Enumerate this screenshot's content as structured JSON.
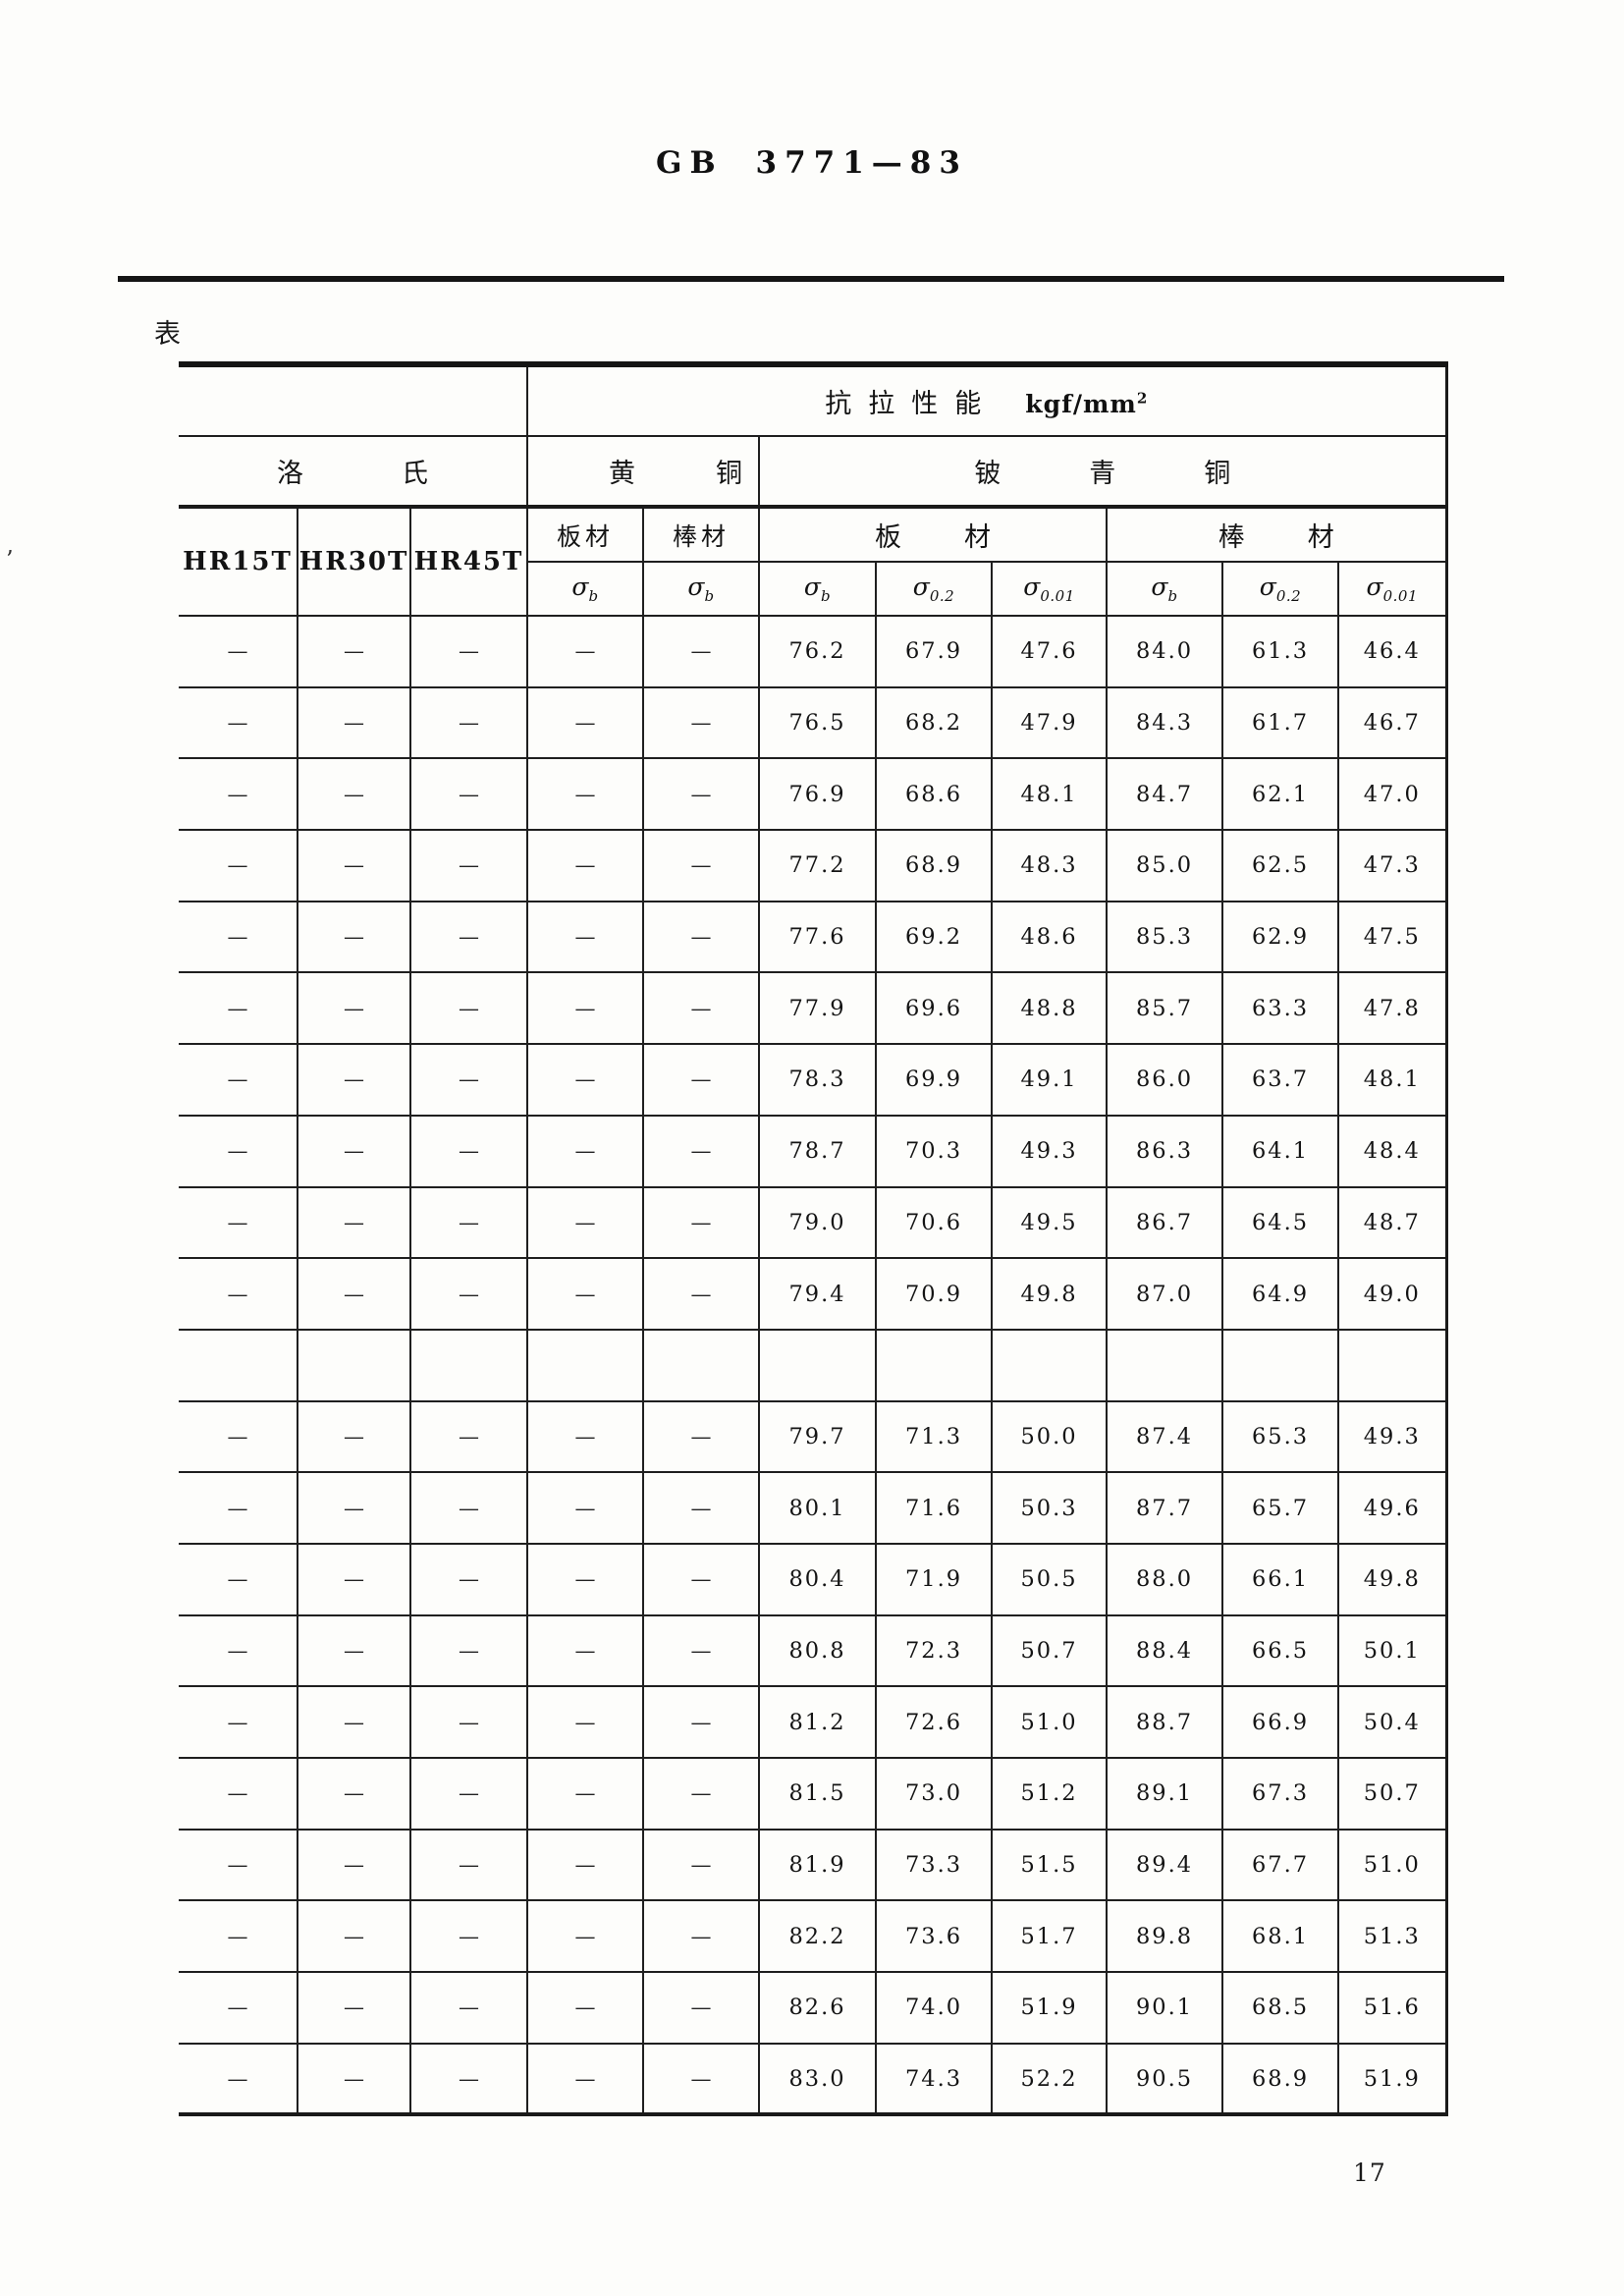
{
  "page": {
    "doc_code": "GB 3771—83",
    "table_label": "表",
    "page_number": "17"
  },
  "table": {
    "title_row": {
      "tensile_title_cjk": "抗拉性能",
      "tensile_unit_base": "kgf/mm",
      "tensile_unit_sup": "2"
    },
    "group_row": {
      "rockwell": "洛氏",
      "brass": "黄铜",
      "beryllium_bronze": "铍青铜"
    },
    "sub_row": {
      "hr15t": "HR15T",
      "hr30t": "HR30T",
      "hr45t": "HR45T",
      "brass_sheet": "板材",
      "brass_bar": "棒材",
      "bronze_sheet": "板材",
      "bronze_bar": "棒材"
    },
    "sigma_row": [
      {
        "sym": "σ",
        "sub": "b"
      },
      {
        "sym": "σ",
        "sub": "b"
      },
      {
        "sym": "σ",
        "sub": "b"
      },
      {
        "sym": "σ",
        "sub": "0.2"
      },
      {
        "sym": "σ",
        "sub": "0.01"
      },
      {
        "sym": "σ",
        "sub": "b"
      },
      {
        "sym": "σ",
        "sub": "0.2"
      },
      {
        "sym": "σ",
        "sub": "0.01"
      }
    ],
    "rows": [
      [
        "—",
        "—",
        "—",
        "—",
        "—",
        "76.2",
        "67.9",
        "47.6",
        "84.0",
        "61.3",
        "46.4"
      ],
      [
        "—",
        "—",
        "—",
        "—",
        "—",
        "76.5",
        "68.2",
        "47.9",
        "84.3",
        "61.7",
        "46.7"
      ],
      [
        "—",
        "—",
        "—",
        "—",
        "—",
        "76.9",
        "68.6",
        "48.1",
        "84.7",
        "62.1",
        "47.0"
      ],
      [
        "—",
        "—",
        "—",
        "—",
        "—",
        "77.2",
        "68.9",
        "48.3",
        "85.0",
        "62.5",
        "47.3"
      ],
      [
        "—",
        "—",
        "—",
        "—",
        "—",
        "77.6",
        "69.2",
        "48.6",
        "85.3",
        "62.9",
        "47.5"
      ],
      [
        "—",
        "—",
        "—",
        "—",
        "—",
        "77.9",
        "69.6",
        "48.8",
        "85.7",
        "63.3",
        "47.8"
      ],
      [
        "—",
        "—",
        "—",
        "—",
        "—",
        "78.3",
        "69.9",
        "49.1",
        "86.0",
        "63.7",
        "48.1"
      ],
      [
        "—",
        "—",
        "—",
        "—",
        "—",
        "78.7",
        "70.3",
        "49.3",
        "86.3",
        "64.1",
        "48.4"
      ],
      [
        "—",
        "—",
        "—",
        "—",
        "—",
        "79.0",
        "70.6",
        "49.5",
        "86.7",
        "64.5",
        "48.7"
      ],
      [
        "—",
        "—",
        "—",
        "—",
        "—",
        "79.4",
        "70.9",
        "49.8",
        "87.0",
        "64.9",
        "49.0"
      ],
      [
        "",
        "",
        "",
        "",
        "",
        "",
        "",
        "",
        "",
        "",
        ""
      ],
      [
        "—",
        "—",
        "—",
        "—",
        "—",
        "79.7",
        "71.3",
        "50.0",
        "87.4",
        "65.3",
        "49.3"
      ],
      [
        "—",
        "—",
        "—",
        "—",
        "—",
        "80.1",
        "71.6",
        "50.3",
        "87.7",
        "65.7",
        "49.6"
      ],
      [
        "—",
        "—",
        "—",
        "—",
        "—",
        "80.4",
        "71.9",
        "50.5",
        "88.0",
        "66.1",
        "49.8"
      ],
      [
        "—",
        "—",
        "—",
        "—",
        "—",
        "80.8",
        "72.3",
        "50.7",
        "88.4",
        "66.5",
        "50.1"
      ],
      [
        "—",
        "—",
        "—",
        "—",
        "—",
        "81.2",
        "72.6",
        "51.0",
        "88.7",
        "66.9",
        "50.4"
      ],
      [
        "—",
        "—",
        "—",
        "—",
        "—",
        "81.5",
        "73.0",
        "51.2",
        "89.1",
        "67.3",
        "50.7"
      ],
      [
        "—",
        "—",
        "—",
        "—",
        "—",
        "81.9",
        "73.3",
        "51.5",
        "89.4",
        "67.7",
        "51.0"
      ],
      [
        "—",
        "—",
        "—",
        "—",
        "—",
        "82.2",
        "73.6",
        "51.7",
        "89.8",
        "68.1",
        "51.3"
      ],
      [
        "—",
        "—",
        "—",
        "—",
        "—",
        "82.6",
        "74.0",
        "51.9",
        "90.1",
        "68.5",
        "51.6"
      ],
      [
        "—",
        "—",
        "—",
        "—",
        "—",
        "83.0",
        "74.3",
        "52.2",
        "90.5",
        "68.9",
        "51.9"
      ]
    ]
  }
}
